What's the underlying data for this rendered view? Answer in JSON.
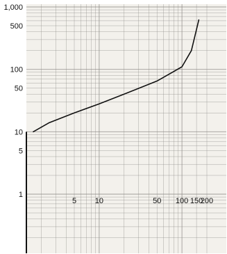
{
  "chart_data": {
    "type": "line",
    "x_scale": "log",
    "y_scale": "log",
    "x_tick_labels": [
      "5",
      "10",
      "50",
      "100",
      "150",
      "200"
    ],
    "x_tick_values": [
      5,
      10,
      50,
      100,
      150,
      200
    ],
    "y_tick_labels": [
      "1,000",
      "500",
      "100",
      "50",
      "10",
      "5",
      "1"
    ],
    "y_tick_values": [
      1000,
      500,
      100,
      50,
      10,
      5,
      1
    ],
    "series": [
      {
        "x": [
          1.6,
          2.5,
          5,
          10,
          20,
          50,
          100,
          130,
          160
        ],
        "y": [
          10,
          14,
          20,
          28,
          40,
          65,
          110,
          200,
          620
        ],
        "color": "#111111"
      }
    ],
    "xlim": [
      1.6,
      230
    ],
    "ylim": [
      0.05,
      1000
    ],
    "grid": true,
    "background": "#f3f1ec",
    "grid_color": "#8c8a86"
  }
}
